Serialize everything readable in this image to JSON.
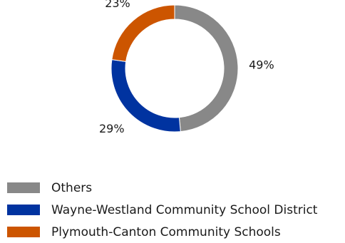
{
  "chart_data": {
    "type": "pie",
    "title": "",
    "series": [
      {
        "name": "Others",
        "value": 49,
        "label": "49%",
        "color": "#888888"
      },
      {
        "name": "Wayne-Westland Community School District",
        "value": 29,
        "label": "29%",
        "color": "#0033A0"
      },
      {
        "name": "Plymouth-Canton Community Schools",
        "value": 23,
        "label": "23%",
        "color": "#CC5500"
      }
    ],
    "legend_position": "bottom-left"
  }
}
